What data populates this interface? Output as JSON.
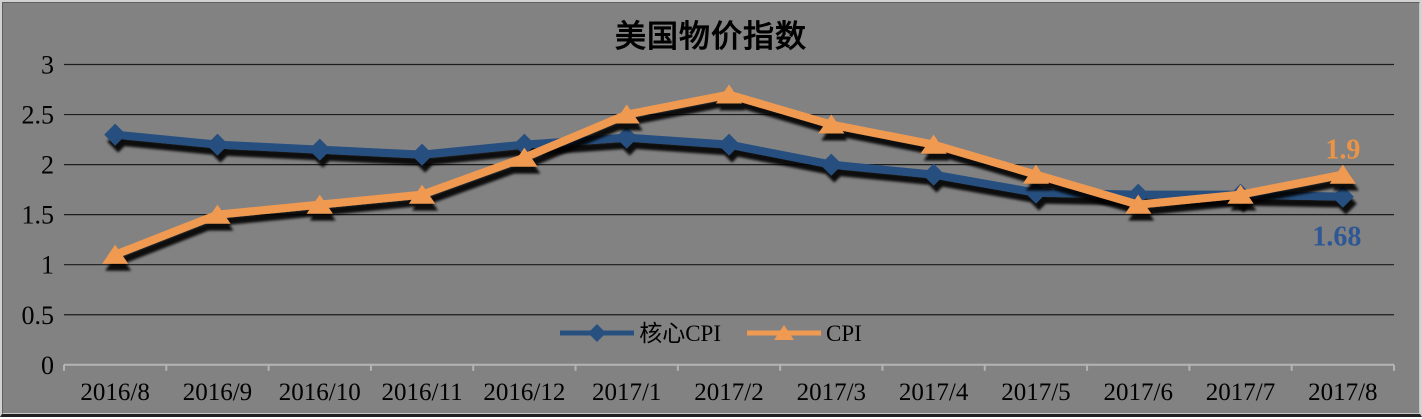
{
  "chart_data": {
    "type": "line",
    "title": "美国物价指数",
    "categories": [
      "2016/8",
      "2016/9",
      "2016/10",
      "2016/11",
      "2016/12",
      "2017/1",
      "2017/2",
      "2017/3",
      "2017/4",
      "2017/5",
      "2017/6",
      "2017/7",
      "2017/8"
    ],
    "series": [
      {
        "id": "core-cpi",
        "name": "核心CPI",
        "marker": "diamond",
        "color": "#28507F",
        "label_color": "#2F5796",
        "values": [
          2.3,
          2.2,
          2.15,
          2.1,
          2.2,
          2.27,
          2.2,
          2.0,
          1.9,
          1.72,
          1.7,
          1.7,
          1.68
        ],
        "end_label": "1.68",
        "end_label_position": "below"
      },
      {
        "id": "cpi",
        "name": "CPI",
        "marker": "triangle",
        "color": "#F09A51",
        "label_color": "#EC9445",
        "values": [
          1.1,
          1.5,
          1.6,
          1.7,
          2.07,
          2.5,
          2.7,
          2.4,
          2.2,
          1.9,
          1.6,
          1.7,
          1.9
        ],
        "end_label": "1.9",
        "end_label_position": "above"
      }
    ],
    "y_ticks": [
      "3",
      "2.5",
      "2",
      "1.5",
      "1",
      "0.5",
      "0"
    ],
    "ylim": [
      0,
      3
    ],
    "grid": true,
    "legend_position": "bottom-center-inside",
    "colors": {
      "background": "#828282",
      "gridline": "#1c1c1c",
      "axis_line": "#b4b4b4",
      "text": "#000000"
    }
  }
}
